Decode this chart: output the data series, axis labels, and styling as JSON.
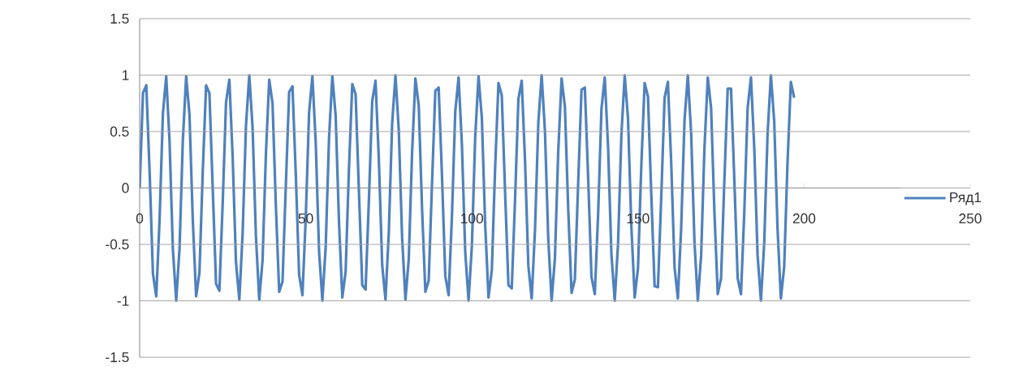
{
  "chart_data": {
    "type": "line",
    "xlim": [
      0,
      250
    ],
    "xticks": [
      0,
      50,
      100,
      150,
      200,
      250
    ],
    "ylim": [
      -1.5,
      1.5
    ],
    "yticks": [
      -1.5,
      -1,
      -0.5,
      0,
      0.5,
      1,
      1.5
    ],
    "grid": "y",
    "legend": "right",
    "marker": "none",
    "series": [
      {
        "name": "Ряд1",
        "color": "#4f81bd",
        "x": [
          0,
          1,
          2,
          3,
          4,
          5,
          6,
          7,
          8,
          9,
          10,
          11,
          12,
          13,
          14,
          15,
          16,
          17,
          18,
          19,
          20,
          21,
          22,
          23,
          24,
          25,
          26,
          27,
          28,
          29,
          30,
          31,
          32,
          33,
          34,
          35,
          36,
          37,
          38,
          39,
          40,
          41,
          42,
          43,
          44,
          45,
          46,
          47,
          48,
          49,
          50,
          51,
          52,
          53,
          54,
          55,
          56,
          57,
          58,
          59,
          60,
          61,
          62,
          63,
          64,
          65,
          66,
          67,
          68,
          69,
          70,
          71,
          72,
          73,
          74,
          75,
          76,
          77,
          78,
          79,
          80,
          81,
          82,
          83,
          84,
          85,
          86,
          87,
          88,
          89,
          90,
          91,
          92,
          93,
          94,
          95,
          96,
          97,
          98,
          99,
          100,
          101,
          102,
          103,
          104,
          105,
          106,
          107,
          108,
          109,
          110,
          111,
          112,
          113,
          114,
          115,
          116,
          117,
          118,
          119,
          120,
          121,
          122,
          123,
          124,
          125,
          126,
          127,
          128,
          129,
          130,
          131,
          132,
          133,
          134,
          135,
          136,
          137,
          138,
          139,
          140,
          141,
          142,
          143,
          144,
          145,
          146,
          147,
          148,
          149,
          150,
          151,
          152,
          153,
          154,
          155,
          156,
          157,
          158,
          159,
          160,
          161,
          162,
          163,
          164,
          165,
          166,
          167,
          168,
          169,
          170,
          171,
          172,
          173,
          174,
          175,
          176,
          177,
          178,
          179,
          180,
          181,
          182,
          183,
          184,
          185,
          186,
          187,
          188,
          189,
          190,
          191,
          192,
          193,
          194,
          195,
          196,
          197
        ],
        "values": [
          0,
          0.84,
          0.91,
          0.14,
          -0.76,
          -0.96,
          -0.28,
          0.66,
          0.99,
          0.41,
          -0.54,
          -1,
          -0.54,
          0.42,
          0.99,
          0.65,
          -0.29,
          -0.96,
          -0.75,
          0.15,
          0.91,
          0.84,
          -0.01,
          -0.85,
          -0.91,
          -0.13,
          0.76,
          0.96,
          0.27,
          -0.66,
          -0.99,
          -0.4,
          0.55,
          1,
          0.53,
          -0.43,
          -0.99,
          -0.64,
          0.3,
          0.96,
          0.75,
          -0.16,
          -0.92,
          -0.83,
          0.02,
          0.85,
          0.9,
          0.12,
          -0.77,
          -0.95,
          -0.26,
          0.67,
          0.99,
          0.4,
          -0.56,
          -1,
          -0.52,
          0.44,
          0.99,
          0.64,
          -0.3,
          -0.97,
          -0.74,
          0.17,
          0.92,
          0.83,
          -0.03,
          -0.86,
          -0.9,
          -0.11,
          0.77,
          0.95,
          0.25,
          -0.68,
          -0.99,
          -0.39,
          0.57,
          1,
          0.51,
          -0.44,
          -0.99,
          -0.63,
          0.31,
          0.97,
          0.73,
          -0.18,
          -0.92,
          -0.82,
          0.04,
          0.86,
          0.89,
          0.11,
          -0.78,
          -0.95,
          -0.25,
          0.68,
          0.98,
          0.38,
          -0.57,
          -1,
          -0.51,
          0.45,
          0.99,
          0.62,
          -0.32,
          -0.97,
          -0.73,
          0.18,
          0.93,
          0.82,
          -0.04,
          -0.86,
          -0.89,
          -0.1,
          0.79,
          0.95,
          0.24,
          -0.69,
          -0.98,
          -0.37,
          0.58,
          1,
          0.5,
          -0.46,
          -1,
          -0.62,
          0.33,
          0.97,
          0.72,
          -0.19,
          -0.93,
          -0.81,
          0.05,
          0.87,
          0.89,
          0.09,
          -0.79,
          -0.94,
          -0.23,
          0.7,
          0.98,
          0.36,
          -0.59,
          -1,
          -0.49,
          0.47,
          1,
          0.61,
          -0.34,
          -0.97,
          -0.71,
          0.2,
          0.93,
          0.81,
          -0.06,
          -0.87,
          -0.88,
          -0.08,
          0.8,
          0.94,
          0.22,
          -0.7,
          -0.98,
          -0.35,
          0.6,
          1,
          0.48,
          -0.48,
          -1,
          -0.6,
          0.35,
          0.98,
          0.71,
          -0.21,
          -0.94,
          -0.8,
          0.07,
          0.88,
          0.88,
          0.07,
          -0.8,
          -0.94,
          -0.21,
          0.71,
          0.98,
          0.35,
          -0.6,
          -1,
          -0.48,
          0.48,
          1,
          0.59,
          -0.36,
          -0.98,
          -0.7,
          0.22,
          0.94,
          0.8
        ]
      }
    ]
  }
}
